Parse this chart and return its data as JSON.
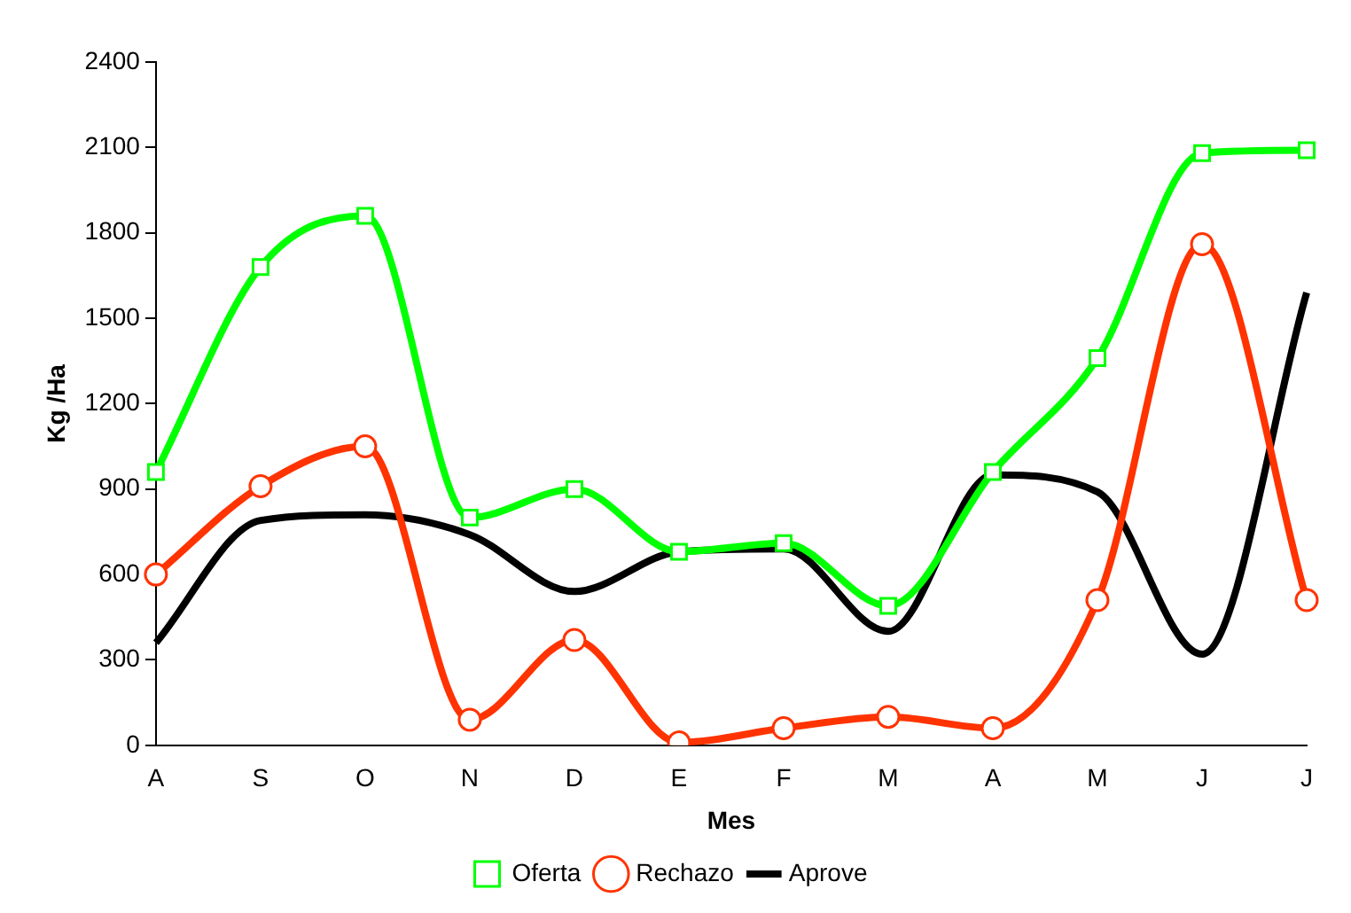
{
  "chart_data": {
    "type": "line",
    "xlabel": "Mes",
    "ylabel": "Kg /Ha",
    "categories": [
      "A",
      "S",
      "O",
      "N",
      "D",
      "E",
      "F",
      "M",
      "A",
      "M",
      "J",
      "J"
    ],
    "series": [
      {
        "name": "Oferta",
        "color": "#00ff00",
        "marker": "square",
        "values": [
          960,
          1680,
          1860,
          800,
          900,
          680,
          710,
          490,
          960,
          1360,
          2080,
          2090
        ]
      },
      {
        "name": "Rechazo",
        "color": "#ff3300",
        "marker": "circle",
        "values": [
          600,
          910,
          1050,
          90,
          370,
          10,
          60,
          100,
          60,
          510,
          1760,
          510
        ]
      },
      {
        "name": "Aprove",
        "color": "#000000",
        "marker": "none",
        "values": [
          360,
          790,
          810,
          740,
          540,
          680,
          690,
          400,
          950,
          890,
          320,
          1590
        ]
      }
    ],
    "ylim": [
      0,
      2400
    ],
    "yticks": [
      0,
      300,
      600,
      900,
      1200,
      1500,
      1800,
      2100,
      2400
    ],
    "grid": false,
    "legend": "bottom"
  }
}
